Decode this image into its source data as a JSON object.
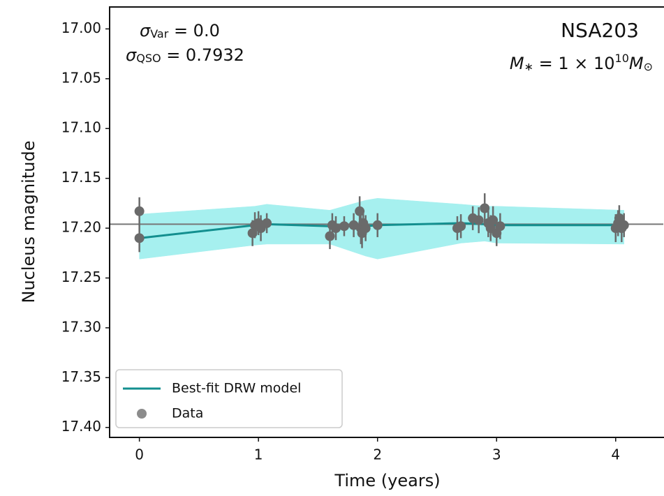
{
  "chart_data": {
    "type": "scatter",
    "x_label": "Time (years)",
    "y_label": "Nucleus magnitude",
    "title": "NSA203",
    "annotations": [
      [
        {
          "text": "σ",
          "italic": true
        },
        {
          "text": "Var",
          "sub": true
        },
        {
          "text": " = 0.0"
        }
      ],
      [
        {
          "text": "σ",
          "italic": true
        },
        {
          "text": "QSO",
          "sub": true
        },
        {
          "text": " = 0.7932"
        }
      ],
      [
        {
          "text": "M",
          "italic": true
        },
        {
          "text": "∗",
          "sub": true
        },
        {
          "text": " = 1 × 10"
        },
        {
          "text": "10",
          "sup": true
        },
        {
          "text": "M",
          "italic": true
        },
        {
          "text": "⊙",
          "sub": true
        }
      ]
    ],
    "xlim": [
      -0.25,
      4.4
    ],
    "xticks": [
      0,
      1,
      2,
      3,
      4
    ],
    "ylim": [
      17.41,
      16.978
    ],
    "yticks": [
      {
        "value": 17.0,
        "label": "17.00"
      },
      17.05,
      {
        "value": 17.1,
        "label": "17.10"
      },
      17.15,
      {
        "value": 17.2,
        "label": "17.20"
      },
      17.25,
      {
        "value": 17.3,
        "label": "17.30"
      },
      17.35,
      {
        "value": 17.4,
        "label": "17.40"
      }
    ],
    "reference_line": 17.196,
    "legend": "lower left",
    "series": [
      {
        "name": "Best-fit DRW model",
        "type": "line",
        "color": "#138f8f",
        "band_color": "#a6f0ef",
        "x": [
          0,
          0.97,
          1.07,
          1.6,
          1.9,
          2.0,
          2.7,
          2.9,
          3.0,
          4.07
        ],
        "values": [
          17.21,
          17.197,
          17.196,
          17.198,
          17.198,
          17.197,
          17.195,
          17.196,
          17.197,
          17.197
        ],
        "band_upper": [
          17.186,
          17.178,
          17.176,
          17.182,
          17.172,
          17.17,
          17.176,
          17.178,
          17.178,
          17.182
        ],
        "band_lower": [
          17.231,
          17.217,
          17.216,
          17.216,
          17.228,
          17.231,
          17.215,
          17.213,
          17.215,
          17.216
        ]
      },
      {
        "name": "Data",
        "type": "errorbar",
        "color": "#6a6a6a",
        "legend_color": "#8c8c8c",
        "x": [
          0,
          0,
          0.95,
          0.97,
          1.0,
          1.02,
          1.07,
          1.6,
          1.62,
          1.65,
          1.72,
          1.8,
          1.85,
          1.86,
          1.87,
          1.88,
          1.9,
          2.0,
          2.67,
          2.7,
          2.8,
          2.85,
          2.9,
          2.93,
          2.95,
          2.97,
          3.0,
          3.03,
          4.0,
          4.02,
          4.03,
          4.05,
          4.07
        ],
        "values": [
          17.183,
          17.21,
          17.205,
          17.197,
          17.195,
          17.2,
          17.195,
          17.208,
          17.197,
          17.2,
          17.198,
          17.197,
          17.183,
          17.2,
          17.205,
          17.195,
          17.2,
          17.197,
          17.2,
          17.198,
          17.19,
          17.192,
          17.18,
          17.195,
          17.2,
          17.192,
          17.205,
          17.198,
          17.2,
          17.195,
          17.19,
          17.2,
          17.197
        ],
        "errors": [
          0.014,
          0.014,
          0.013,
          0.013,
          0.012,
          0.013,
          0.01,
          0.013,
          0.012,
          0.012,
          0.01,
          0.012,
          0.015,
          0.016,
          0.015,
          0.014,
          0.013,
          0.012,
          0.012,
          0.012,
          0.012,
          0.013,
          0.015,
          0.014,
          0.013,
          0.014,
          0.013,
          0.013,
          0.014,
          0.013,
          0.013,
          0.014,
          0.012
        ]
      }
    ]
  }
}
